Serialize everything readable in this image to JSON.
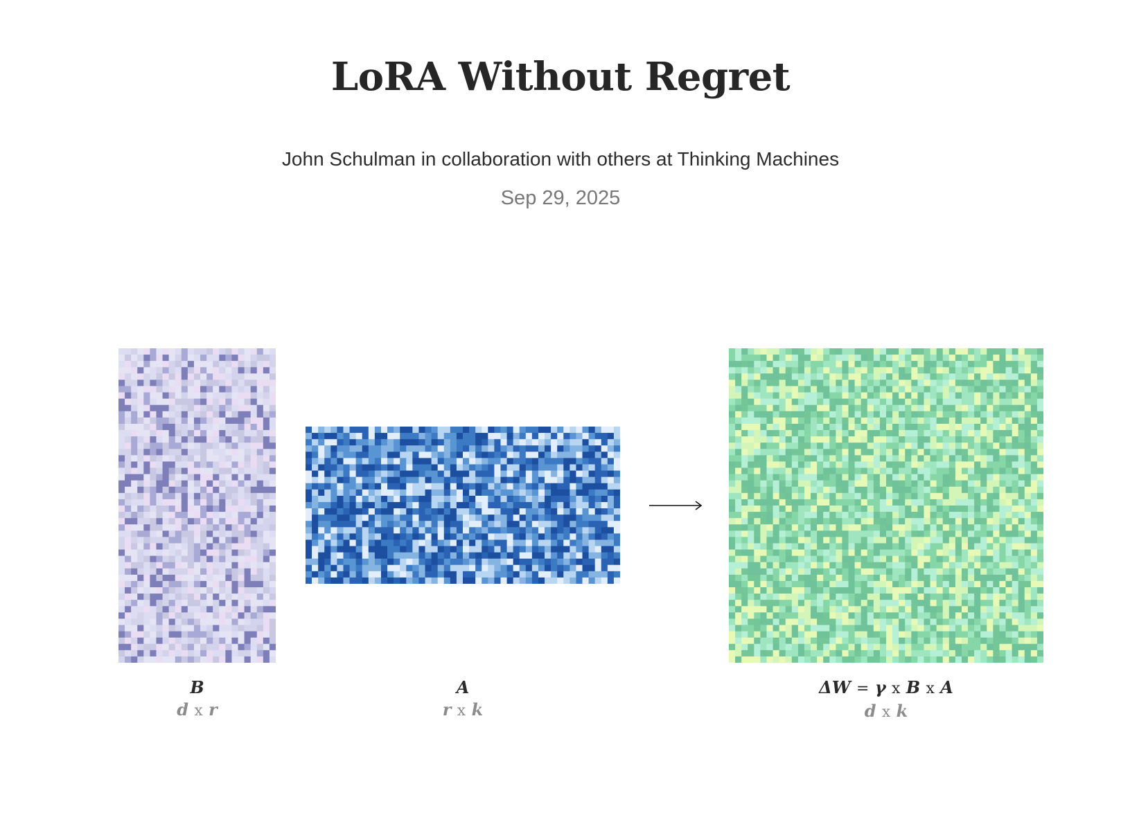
{
  "header": {
    "title": "LoRA Without Regret",
    "byline": "John Schulman in collaboration with others at Thinking Machines",
    "date": "Sep 29, 2025"
  },
  "diagram": {
    "arrow_icon": "long-right-arrow-icon",
    "matrices": {
      "b": {
        "name": "B",
        "dim_left": "d",
        "dim_sep": "x",
        "dim_right": "r",
        "palette": [
          "#e4e4f4",
          "#dcdcf2",
          "#d3d3ec",
          "#c8c8e2",
          "#eadcf2",
          "#a9a9d6",
          "#7e7eb8"
        ]
      },
      "a": {
        "name": "A",
        "dim_left": "r",
        "dim_sep": "x",
        "dim_right": "k",
        "palette": [
          "#1c4fa0",
          "#2a62b4",
          "#3d7ac4",
          "#5a95d3",
          "#86b4e2",
          "#b8d5f2",
          "#e2eefb"
        ]
      },
      "dw": {
        "name_delta_w": "ΔW",
        "name_eq": "=",
        "name_gamma": "γ",
        "name_x1": "x",
        "name_b": "B",
        "name_x2": "x",
        "name_a": "A",
        "dim_left": "d",
        "dim_sep": "x",
        "dim_right": "k",
        "palette": [
          "#6fc29a",
          "#86d6a8",
          "#9fe6c0",
          "#b5f0d6",
          "#d3f5b8",
          "#e6f9b6",
          "#74c597"
        ]
      }
    }
  }
}
